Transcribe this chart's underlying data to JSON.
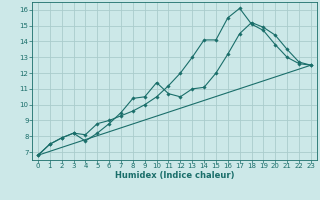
{
  "title": "",
  "xlabel": "Humidex (Indice chaleur)",
  "ylabel": "",
  "bg_color": "#cce8e8",
  "grid_color": "#aacccc",
  "line_color": "#1a6e6a",
  "spine_color": "#1a6e6a",
  "xlim": [
    -0.5,
    23.5
  ],
  "ylim": [
    6.5,
    16.5
  ],
  "xticks": [
    0,
    1,
    2,
    3,
    4,
    5,
    6,
    7,
    8,
    9,
    10,
    11,
    12,
    13,
    14,
    15,
    16,
    17,
    18,
    19,
    20,
    21,
    22,
    23
  ],
  "yticks": [
    7,
    8,
    9,
    10,
    11,
    12,
    13,
    14,
    15,
    16
  ],
  "line1_x": [
    0,
    1,
    2,
    3,
    4,
    5,
    6,
    7,
    8,
    9,
    10,
    11,
    12,
    13,
    14,
    15,
    16,
    17,
    18,
    19,
    20,
    21,
    22,
    23
  ],
  "line1_y": [
    6.8,
    7.5,
    7.9,
    8.2,
    8.1,
    8.8,
    9.0,
    9.3,
    9.6,
    10.0,
    10.5,
    11.2,
    12.0,
    13.0,
    14.1,
    14.1,
    15.5,
    16.1,
    15.1,
    14.7,
    13.8,
    13.0,
    12.6,
    12.5
  ],
  "line2_x": [
    0,
    1,
    2,
    3,
    4,
    5,
    6,
    7,
    8,
    9,
    10,
    11,
    12,
    13,
    14,
    15,
    16,
    17,
    18,
    19,
    20,
    21,
    22,
    23
  ],
  "line2_y": [
    6.8,
    7.5,
    7.9,
    8.2,
    7.7,
    8.2,
    8.8,
    9.5,
    10.4,
    10.5,
    11.4,
    10.7,
    10.5,
    11.0,
    11.1,
    12.0,
    13.2,
    14.5,
    15.2,
    14.9,
    14.4,
    13.5,
    12.7,
    12.5
  ],
  "line3_x": [
    0,
    23
  ],
  "line3_y": [
    6.8,
    12.5
  ],
  "tick_fontsize": 5.0,
  "xlabel_fontsize": 6.0
}
